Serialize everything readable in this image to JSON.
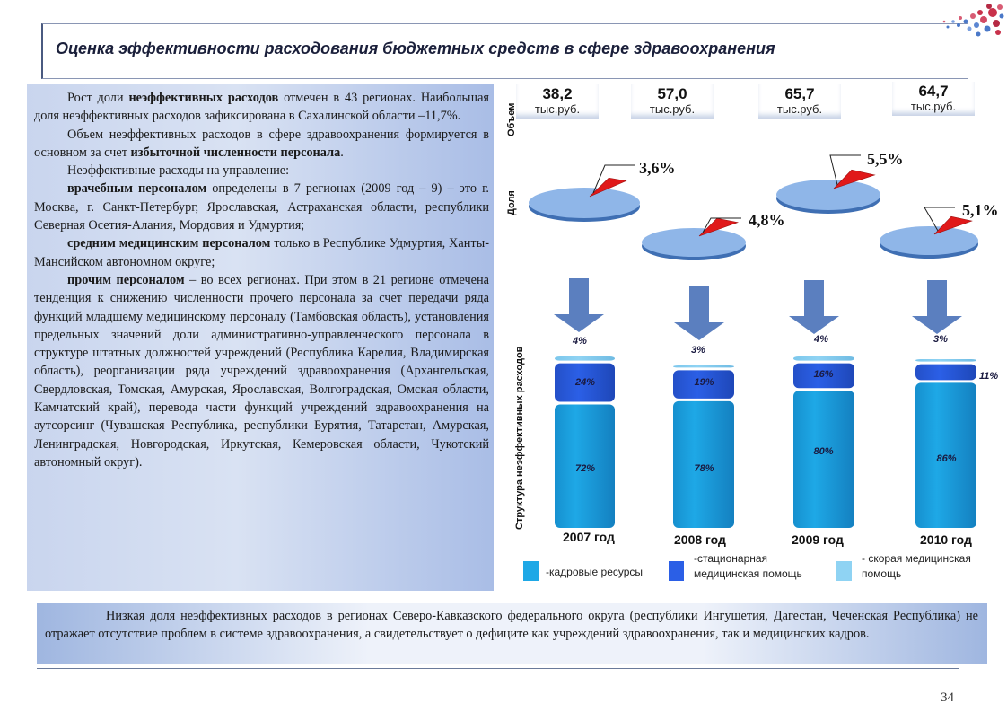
{
  "title": "Оценка эффективности расходования бюджетных средств в сфере здравоохранения",
  "left_text": {
    "p1_a": "Рост доли ",
    "p1_b": "неэффективных расходов",
    "p1_c": " отмечен в 43 регионах. Наибольшая доля неэффективных расходов зафиксирована в Сахалинской области –11,7%.",
    "p2_a": "Объем неэффективных расходов в сфере здравоохранения формируется в основном за счет ",
    "p2_b": "избыточной численности персонала",
    "p2_c": ".",
    "p3": "Неэффективные расходы на управление:",
    "p4_a": "врачебным персоналом",
    "p4_b": " определены в 7 регионах (2009 год – 9) – это г. Москва, г. Санкт-Петербург, Ярославская, Астраханская области, республики Северная Осетия-Алания, Мордовия и Удмуртия;",
    "p5_a": "средним медицинским персоналом",
    "p5_b": " только в Республике Удмуртия, Ханты-Мансийском автономном округе;",
    "p6_a": "прочим персоналом",
    "p6_b": " – во всех регионах. При этом в 21 регионе отмечена тенденция к снижению численности прочего персонала за счет передачи ряда функций младшему медицинскому персоналу (Тамбовская область), установления предельных значений доли административно-управленческого персонала в структуре штатных должностей учреждений (Республика Карелия, Владимирская область), реорганизации ряда учреждений здравоохранения (Архангельская, Свердловская, Томская, Амурская, Ярославская, Волгоградская, Омская области, Камчатский край), перевода части функций учреждений здравоохранения на аутсорсинг (Чувашская Республика, республики Бурятия, Татарстан, Амурская, Ленинградская, Новгородская, Иркутская, Кемеровская области, Чукотский автономный округ)."
  },
  "bottom_text": "Низкая доля неэффективных расходов в регионах Северо-Кавказского федерального округа (республики Ингушетия, Дагестан, Чеченская Республика) не отражает отсутствие проблем в системе здравоохранения, а свидетельствует о дефиците как учреждений здравоохранения, так и медицинских кадров.",
  "page_number": "34",
  "colors": {
    "kadrovye": "#1ea8e6",
    "stacionarnaya": "#2b5fe6",
    "skoraya": "#8fd3f3",
    "pie": "#8fb6e8",
    "pie_slice": "#e0191a",
    "arrow": "#5b7fbf"
  },
  "chart_data": {
    "type": "bar",
    "stacked": true,
    "categories": [
      "2007 год",
      "2008 год",
      "2009 год",
      "2010 год"
    ],
    "volume_label": "Объем",
    "volume": [
      "38,2",
      "57,0",
      "65,7",
      "64,7"
    ],
    "volume_unit": "тыс.руб.",
    "share_label": "Доля",
    "share": [
      "3,6%",
      "4,8%",
      "5,5%",
      "5,1%"
    ],
    "share_values": [
      3.6,
      4.8,
      5.5,
      5.1
    ],
    "ylabel": "Структура неэффективных расходов",
    "series": [
      {
        "name": "-кадровые ресурсы",
        "values": [
          72,
          78,
          80,
          86
        ],
        "labels": [
          "72%",
          "78%",
          "80%",
          "86%"
        ]
      },
      {
        "name": "-стационарная медицинская помощь",
        "values": [
          24,
          19,
          16,
          11
        ],
        "labels": [
          "24%",
          "19%",
          "16%",
          "11%"
        ]
      },
      {
        "name": "- скорая медицинская помощь",
        "values": [
          4,
          3,
          4,
          3
        ],
        "labels": [
          "4%",
          "3%",
          "4%",
          "3%"
        ]
      }
    ]
  }
}
